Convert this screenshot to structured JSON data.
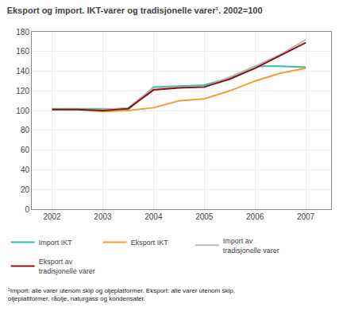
{
  "chart_data": {
    "type": "line",
    "title": "Eksport og import. IKT-varer og tradisjonelle varer¹. 2002=100",
    "annotations": [
      "¹Import: alle varer utenom skip og oljeplatformer. Eksport: alle varer utenom skip,\noljeplattformer, råolje, naturgass og kondensater."
    ],
    "x": [
      2002,
      2002.5,
      2003,
      2003.5,
      2004,
      2004.5,
      2005,
      2005.5,
      2006,
      2006.5,
      2007
    ],
    "series": [
      {
        "name": "Import IKT",
        "color": "#3cb8b0",
        "values": [
          102,
          102,
          102,
          101,
          124,
          125,
          126,
          133,
          145,
          145,
          144
        ]
      },
      {
        "name": "Eksport IKT",
        "color": "#f0a030",
        "values": [
          101,
          101,
          99,
          100,
          103,
          110,
          112,
          120,
          130,
          138,
          143
        ]
      },
      {
        "name": "Import av\ntradisjonelle varer",
        "color": "#b8b8b8",
        "values": [
          101,
          101,
          101,
          103,
          123,
          124,
          124,
          134,
          145,
          157,
          172
        ]
      },
      {
        "name": "Eksport av\ntradisjonelle varer",
        "color": "#8b1515",
        "values": [
          101,
          101,
          100,
          102,
          121,
          123,
          124,
          132,
          143,
          156,
          169
        ]
      }
    ],
    "xlim": [
      2001.6,
      2007.5
    ],
    "xticks": [
      2002,
      2003,
      2004,
      2005,
      2006,
      2007
    ],
    "ylim": [
      0,
      180
    ],
    "yticks": [
      0,
      20,
      40,
      60,
      80,
      100,
      120,
      140,
      160,
      180
    ],
    "grid": true,
    "legend": "bottom"
  }
}
